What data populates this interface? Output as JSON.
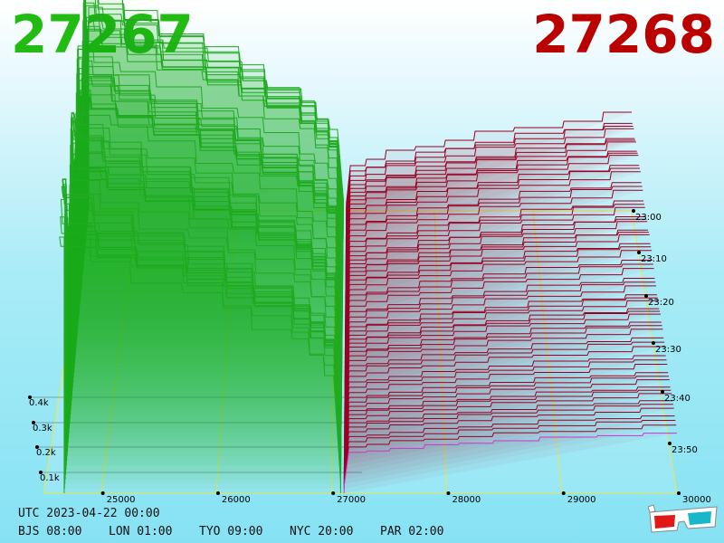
{
  "header": {
    "bid_price": "27267",
    "ask_price": "27268",
    "bid_color": "#22bb11",
    "ask_color": "#bb0000"
  },
  "footer": {
    "utc": "UTC 2023-04-22 00:00",
    "cities": [
      "BJS 08:00",
      "LON 01:00",
      "TYO 09:00",
      "NYC 20:00",
      "PAR 02:00"
    ]
  },
  "chart_data": {
    "type": "area",
    "view": "3d-depth-chart",
    "x_axis": {
      "ticks": [
        "25000",
        "26000",
        "27000",
        "28000",
        "29000",
        "30000"
      ],
      "range": [
        24500,
        30000
      ]
    },
    "y_axis": {
      "ticks": [
        "0.1k",
        "0.2k",
        "0.3k",
        "0.4k"
      ],
      "range": [
        0,
        0.5
      ]
    },
    "time_axis": {
      "ticks": [
        "23:00",
        "23:10",
        "23:20",
        "23:30",
        "23:40",
        "23:50"
      ]
    },
    "series": [
      {
        "side": "bid",
        "color": "#22aa22"
      },
      {
        "side": "ask",
        "color": "#990022"
      }
    ],
    "latest_ask_color": "#cc33cc",
    "grid": true
  },
  "icons": {
    "glasses": "3d-glasses-icon"
  }
}
